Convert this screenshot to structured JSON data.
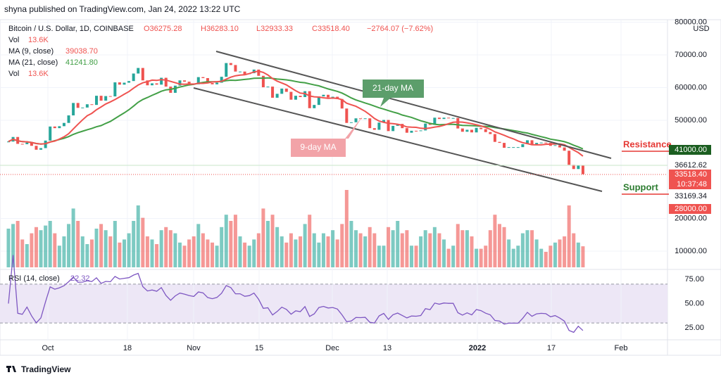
{
  "chart_data": {
    "type": "candlestick",
    "publisher": "shyna published on TradingView.com, Jan 24, 2022 13:22 UTC",
    "symbol": "Bitcoin / U.S. Dollar, 1D, COINBASE",
    "ohlc_text": [
      "O36275.28",
      "H36283.10",
      "L32933.33",
      "C33518.40",
      "−2764.07 (−7.62%)"
    ],
    "vol_title": "Vol",
    "vol_value": "13.6K",
    "ma9_title": "MA (9, close)",
    "ma9_value": "39038.70",
    "ma21_title": "MA (21, close)",
    "ma21_value": "41241.80",
    "rsi_title": "RSI (14, close)",
    "rsi_value": "22.32",
    "currency": "USD",
    "brand": "TradingView",
    "annotations": {
      "ma21": "21-day MA",
      "ma9": "9-day MA",
      "resistance": "Resistance",
      "support": "Support"
    },
    "price_labels": [
      "41000.00",
      "36612.62",
      "33518.40",
      "10:37:48",
      "33169.34",
      "28000.00"
    ],
    "up_color": "#26a69a",
    "down_color": "#ef5350",
    "ma9_color": "#ef5350",
    "ma21_color": "#43a047",
    "rsi_color": "#7e57c2",
    "close": [
      43500,
      44900,
      42800,
      42700,
      43200,
      42200,
      41000,
      41500,
      43800,
      48100,
      47600,
      48200,
      49200,
      51500,
      55300,
      53800,
      53900,
      54900,
      54700,
      57500,
      56000,
      57400,
      57300,
      61600,
      60900,
      61500,
      62000,
      64300,
      66000,
      62200,
      60700,
      61300,
      60900,
      63000,
      60300,
      58400,
      60600,
      62200,
      61800,
      61300,
      61000,
      63200,
      62900,
      61400,
      61000,
      61500,
      63300,
      67500,
      66900,
      64900,
      64900,
      64100,
      64400,
      65500,
      63600,
      60100,
      60300,
      56900,
      58100,
      59700,
      58700,
      56300,
      57500,
      57100,
      58900,
      53700,
      54700,
      57300,
      57800,
      57000,
      57200,
      56500,
      53600,
      49200,
      49400,
      50600,
      50500,
      50600,
      47600,
      47100,
      49300,
      50100,
      46700,
      48300,
      48900,
      47600,
      46200,
      46800,
      46700,
      46900,
      49000,
      48600,
      50800,
      50400,
      50800,
      50700,
      50700,
      47500,
      46500,
      47100,
      46300,
      47700,
      47300,
      46400,
      45800,
      43400,
      43100,
      41600,
      41800,
      41800,
      41800,
      42700,
      43900,
      42600,
      43100,
      43200,
      43100,
      42200,
      42400,
      41700,
      40700,
      36400,
      35100,
      36275.28,
      33518.4
    ],
    "volume": [
      25,
      28,
      30,
      18,
      15,
      22,
      26,
      24,
      27,
      30,
      22,
      14,
      20,
      28,
      38,
      30,
      20,
      15,
      18,
      25,
      28,
      24,
      20,
      30,
      16,
      18,
      22,
      30,
      40,
      32,
      20,
      18,
      15,
      24,
      26,
      24,
      22,
      16,
      14,
      18,
      20,
      28,
      22,
      18,
      16,
      14,
      26,
      34,
      30,
      34,
      20,
      16,
      14,
      18,
      22,
      38,
      30,
      34,
      26,
      20,
      16,
      22,
      18,
      20,
      28,
      34,
      22,
      16,
      22,
      20,
      24,
      18,
      28,
      50,
      30,
      24,
      22,
      20,
      26,
      22,
      14,
      14,
      26,
      24,
      30,
      22,
      24,
      14,
      14,
      20,
      24,
      22,
      26,
      22,
      18,
      12,
      14,
      28,
      24,
      24,
      20,
      12,
      12,
      14,
      24,
      34,
      28,
      26,
      18,
      12,
      14,
      22,
      24,
      24,
      18,
      12,
      10,
      14,
      16,
      18,
      20,
      40,
      22,
      16,
      13.6
    ],
    "xticks": [
      "Oct",
      "18",
      "Nov",
      "15",
      "Dec",
      "13",
      "2022",
      "17",
      "Feb"
    ],
    "ylim": [
      8000,
      80000
    ],
    "yticks": [
      {
        "value": 80000,
        "label": "80000.00"
      },
      {
        "value": 70000,
        "label": "70000.00"
      },
      {
        "value": 60000,
        "label": "60000.00"
      },
      {
        "value": 50000,
        "label": "50000.00"
      },
      {
        "value": 20000,
        "label": "20000.00"
      },
      {
        "value": 10000,
        "label": "10000.00"
      }
    ],
    "rsi_ylim": [
      14,
      85
    ],
    "rsi_yticks": [
      {
        "value": 75,
        "label": "75.00"
      },
      {
        "value": 50,
        "label": "50.00"
      },
      {
        "value": 25,
        "label": "25.00"
      }
    ],
    "rsi_band": [
      30,
      70
    ]
  }
}
